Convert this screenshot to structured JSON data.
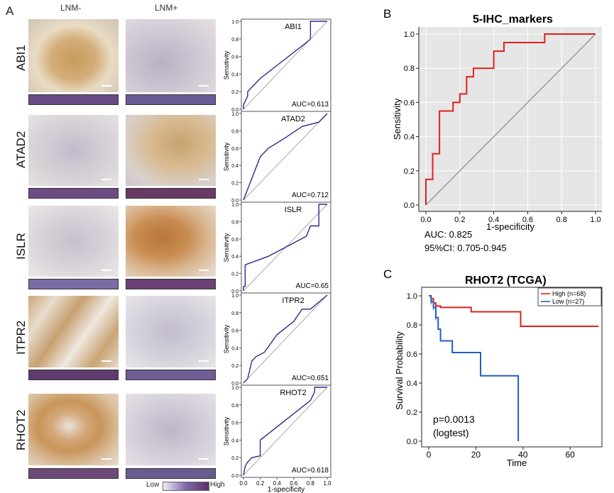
{
  "panel_a": {
    "letter": "A",
    "col_left": "LNM-",
    "col_right": "LNM+",
    "legend_low": "Low",
    "legend_high": "High",
    "x_axis_label": "1-specificity",
    "y_axis_label": "Sensitivity"
  },
  "panel_b": {
    "letter": "B"
  },
  "panel_c": {
    "letter": "C"
  },
  "colors": {
    "roc_line": "#2b2b8f",
    "diag": "#a8a8a8",
    "red": "#e0201b",
    "blue": "#1f5fbf",
    "bg_grey": "#e6e6e6"
  },
  "chart_data": [
    {
      "type": "line",
      "title": "ABI1",
      "gene": "ABI1",
      "auc": "AUC=0.613",
      "x": [
        0,
        0,
        0.05,
        0.05,
        0.2,
        0.78,
        0.8,
        0.8,
        1.0
      ],
      "y": [
        0,
        0.05,
        0.15,
        0.2,
        0.35,
        0.78,
        0.8,
        1.0,
        1.0
      ],
      "xlabel": "",
      "ylabel": "Sensitivity",
      "ylim": [
        0,
        1
      ]
    },
    {
      "type": "line",
      "title": "ATAD2",
      "gene": "ATAD2",
      "auc": "AUC=0.712",
      "x": [
        0,
        0.02,
        0.1,
        0.2,
        0.3,
        0.5,
        0.7,
        0.9,
        1.0
      ],
      "y": [
        0,
        0.05,
        0.25,
        0.5,
        0.6,
        0.72,
        0.85,
        0.9,
        1.0
      ],
      "xlabel": "",
      "ylabel": "Sensitivity",
      "ylim": [
        0,
        1
      ]
    },
    {
      "type": "line",
      "title": "ISLR",
      "gene": "ISLR",
      "auc": "AUC=0.65",
      "x": [
        0,
        0,
        0.02,
        0.02,
        0.3,
        0.75,
        0.8,
        0.9,
        0.9,
        1.0
      ],
      "y": [
        0,
        0.05,
        0.05,
        0.3,
        0.4,
        0.63,
        0.75,
        0.75,
        1.0,
        1.0
      ],
      "xlabel": "",
      "ylabel": "Sensitivity",
      "ylim": [
        0,
        1
      ]
    },
    {
      "type": "line",
      "title": "ITPR2",
      "gene": "ITPR2",
      "auc": "AUC=0.651",
      "x": [
        0,
        0.05,
        0.1,
        0.15,
        0.25,
        0.4,
        0.6,
        0.7,
        0.8,
        1.0
      ],
      "y": [
        0,
        0.05,
        0.25,
        0.3,
        0.35,
        0.55,
        0.7,
        0.84,
        0.84,
        1.0
      ],
      "xlabel": "",
      "ylabel": "Sensitivity",
      "ylim": [
        0,
        1
      ]
    },
    {
      "type": "line",
      "title": "RHOT2",
      "gene": "RHOT2",
      "auc": "AUC=0.618",
      "x": [
        0,
        0.02,
        0.05,
        0.1,
        0.2,
        0.2,
        0.8,
        0.85,
        0.85,
        1.0
      ],
      "y": [
        0,
        0.1,
        0.15,
        0.2,
        0.22,
        0.4,
        0.85,
        0.95,
        1.0,
        1.0
      ],
      "xlabel": "",
      "ylabel": "Sensitivity",
      "ylim": [
        0,
        1
      ]
    },
    {
      "type": "line",
      "title": "5-IHC_markers",
      "x": [
        0,
        0,
        0.02,
        0.04,
        0.04,
        0.08,
        0.08,
        0.16,
        0.16,
        0.2,
        0.2,
        0.24,
        0.24,
        0.28,
        0.28,
        0.4,
        0.4,
        0.46,
        0.46,
        0.7,
        0.7,
        1.0
      ],
      "y": [
        0,
        0.15,
        0.15,
        0.15,
        0.3,
        0.3,
        0.55,
        0.55,
        0.6,
        0.6,
        0.65,
        0.65,
        0.75,
        0.75,
        0.8,
        0.8,
        0.9,
        0.9,
        0.95,
        0.95,
        1.0,
        1.0
      ],
      "xlabel": "1-specificity",
      "ylabel": "Sensitivity",
      "xticks": [
        "0.0",
        "0.2",
        "0.4",
        "0.6",
        "0.8",
        "1.0"
      ],
      "yticks": [
        "0.0",
        "0.2",
        "0.4",
        "0.6",
        "0.8",
        "1.0"
      ],
      "xlim": [
        0,
        1
      ],
      "ylim": [
        0,
        1
      ],
      "auc": "AUC: 0.825",
      "ci": "95%CI: 0.705-0.945",
      "grid": true
    },
    {
      "type": "line",
      "title": "RHOT2 (TCGA)",
      "xlabel": "Time",
      "ylabel": "Survival Probability",
      "xticks": [
        "0",
        "20",
        "40",
        "60"
      ],
      "yticks": [
        "0.0",
        "0.2",
        "0.4",
        "0.6",
        "0.8",
        "1.0"
      ],
      "xlim": [
        0,
        72
      ],
      "ylim": [
        0,
        1
      ],
      "series": [
        {
          "name": "High (n=68)",
          "x": [
            0,
            1,
            2,
            3,
            5,
            18,
            38,
            39,
            72
          ],
          "y": [
            1,
            0.98,
            0.95,
            0.93,
            0.92,
            0.89,
            0.89,
            0.79,
            0.79
          ]
        },
        {
          "name": "Low (n=27)",
          "x": [
            0,
            1,
            2,
            3,
            4,
            5,
            10,
            22,
            38,
            38
          ],
          "y": [
            1,
            0.96,
            0.92,
            0.85,
            0.77,
            0.69,
            0.61,
            0.45,
            0.45,
            0.0
          ]
        }
      ],
      "pvalue": "p=0.0013",
      "test": "(logtest)",
      "legend": "top-right"
    }
  ]
}
